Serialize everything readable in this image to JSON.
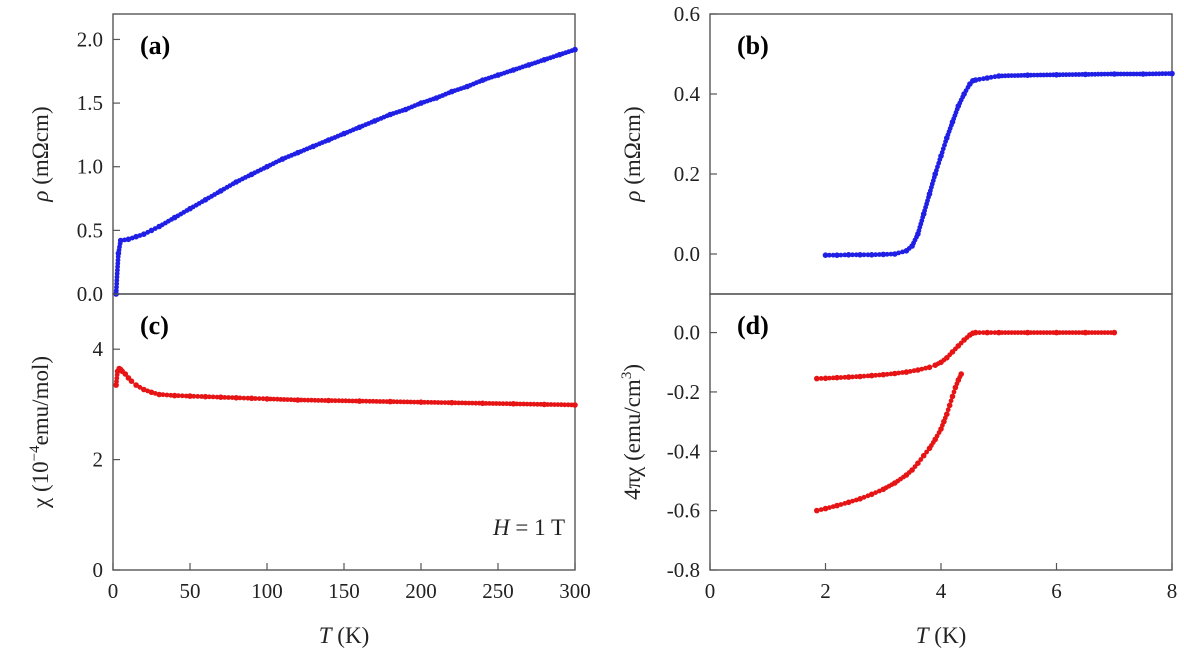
{
  "chart_data": [
    {
      "id": "a",
      "type": "scatter",
      "panel_label": "(a)",
      "ylabel_symbol": "ρ",
      "ylabel_rest": " (mΩcm)",
      "xlabel": "",
      "xlim": [
        0,
        300
      ],
      "ylim": [
        0,
        2.2
      ],
      "xticks": [],
      "yticks": [
        "0.0",
        "0.5",
        "1.0",
        "1.5",
        "2.0"
      ],
      "ytick_values": [
        0,
        0.5,
        1.0,
        1.5,
        2.0
      ],
      "color": "#1f1fe6",
      "series": [
        {
          "x": [
            2,
            3.5,
            5,
            10,
            15,
            20,
            25,
            30,
            40,
            50,
            60,
            70,
            80,
            90,
            100,
            110,
            120,
            130,
            140,
            150,
            160,
            170,
            180,
            190,
            200,
            210,
            220,
            230,
            240,
            250,
            260,
            270,
            280,
            290,
            300
          ],
          "y": [
            0.0,
            0.32,
            0.42,
            0.43,
            0.45,
            0.47,
            0.5,
            0.53,
            0.6,
            0.67,
            0.74,
            0.81,
            0.88,
            0.94,
            1.0,
            1.06,
            1.11,
            1.16,
            1.21,
            1.26,
            1.31,
            1.36,
            1.41,
            1.45,
            1.5,
            1.54,
            1.59,
            1.63,
            1.68,
            1.72,
            1.76,
            1.8,
            1.84,
            1.88,
            1.92
          ]
        }
      ]
    },
    {
      "id": "b",
      "type": "scatter",
      "panel_label": "(b)",
      "ylabel_symbol": "ρ",
      "ylabel_rest": " (mΩcm)",
      "xlabel": "",
      "xlim": [
        0,
        8
      ],
      "ylim": [
        -0.1,
        0.6
      ],
      "xticks": [],
      "yticks": [
        "0.0",
        "0.2",
        "0.4",
        "0.6"
      ],
      "ytick_values": [
        0,
        0.2,
        0.4,
        0.6
      ],
      "color": "#1f1fe6",
      "series": [
        {
          "x": [
            2.0,
            2.2,
            2.4,
            2.6,
            2.8,
            3.0,
            3.2,
            3.4,
            3.5,
            3.6,
            3.7,
            3.8,
            3.9,
            4.0,
            4.1,
            4.2,
            4.3,
            4.4,
            4.5,
            4.55,
            4.6,
            4.8,
            5.0,
            5.5,
            6.0,
            6.5,
            7.0,
            7.5,
            8.0
          ],
          "y": [
            -0.003,
            -0.003,
            -0.002,
            -0.002,
            -0.002,
            -0.001,
            0.0,
            0.008,
            0.02,
            0.05,
            0.1,
            0.15,
            0.2,
            0.245,
            0.29,
            0.33,
            0.37,
            0.4,
            0.425,
            0.433,
            0.435,
            0.44,
            0.445,
            0.447,
            0.448,
            0.449,
            0.45,
            0.45,
            0.451
          ]
        }
      ]
    },
    {
      "id": "c",
      "type": "scatter",
      "panel_label": "(c)",
      "ylabel_pre": "χ (10",
      "ylabel_sup": "−4",
      "ylabel_post": "emu/mol)",
      "xlabel_symbol": "T",
      "xlabel_rest": " (K)",
      "xlim": [
        0,
        300
      ],
      "ylim": [
        0,
        5
      ],
      "xticks": [
        "0",
        "50",
        "100",
        "150",
        "200",
        "250",
        "300"
      ],
      "xtick_values": [
        0,
        50,
        100,
        150,
        200,
        250,
        300
      ],
      "yticks": [
        "0",
        "2",
        "4"
      ],
      "ytick_values": [
        0,
        2,
        4
      ],
      "annotation_symbol": "H",
      "annotation_rest": " = 1 T",
      "color": "#e61414",
      "series": [
        {
          "x": [
            2,
            3,
            4,
            5,
            6,
            8,
            10,
            12,
            15,
            20,
            25,
            30,
            40,
            50,
            60,
            70,
            80,
            90,
            100,
            120,
            140,
            160,
            180,
            200,
            220,
            240,
            260,
            280,
            300
          ],
          "y": [
            3.35,
            3.6,
            3.65,
            3.63,
            3.6,
            3.55,
            3.48,
            3.42,
            3.35,
            3.27,
            3.22,
            3.18,
            3.16,
            3.15,
            3.14,
            3.13,
            3.12,
            3.11,
            3.1,
            3.08,
            3.07,
            3.06,
            3.05,
            3.04,
            3.03,
            3.02,
            3.01,
            3.0,
            2.99
          ]
        }
      ]
    },
    {
      "id": "d",
      "type": "scatter",
      "panel_label": "(d)",
      "ylabel_pre": "4πχ (emu/cm",
      "ylabel_sup": "3",
      "ylabel_post": ")",
      "xlabel_symbol": "T",
      "xlabel_rest": " (K)",
      "xlim": [
        0,
        8
      ],
      "ylim": [
        -0.8,
        0.13
      ],
      "xticks": [
        "0",
        "2",
        "4",
        "6",
        "8"
      ],
      "xtick_values": [
        0,
        2,
        4,
        6,
        8
      ],
      "yticks": [
        "0.0",
        "-0.2",
        "-0.4",
        "-0.6",
        "-0.8"
      ],
      "ytick_values": [
        0,
        -0.2,
        -0.4,
        -0.6,
        -0.8
      ],
      "color": "#e61414",
      "series": [
        {
          "name": "",
          "x": [
            1.85,
            2.0,
            2.2,
            2.4,
            2.6,
            2.8,
            3.0,
            3.2,
            3.4,
            3.6,
            3.8,
            3.9,
            4.0,
            4.1,
            4.2,
            4.3,
            4.4,
            4.5,
            4.55,
            4.6,
            4.8,
            5.0,
            5.5,
            6.0,
            6.5,
            7.0
          ],
          "y": [
            -0.155,
            -0.154,
            -0.152,
            -0.15,
            -0.148,
            -0.145,
            -0.142,
            -0.138,
            -0.133,
            -0.126,
            -0.117,
            -0.11,
            -0.1,
            -0.085,
            -0.065,
            -0.045,
            -0.025,
            -0.008,
            -0.002,
            0.0,
            0.0,
            0.0,
            0.0,
            0.0,
            0.0,
            0.0
          ]
        },
        {
          "name": "",
          "x": [
            1.85,
            2.0,
            2.2,
            2.4,
            2.6,
            2.8,
            3.0,
            3.2,
            3.4,
            3.5,
            3.6,
            3.7,
            3.8,
            3.9,
            4.0,
            4.05,
            4.1,
            4.15,
            4.2,
            4.25,
            4.3,
            4.35
          ],
          "y": [
            -0.6,
            -0.593,
            -0.583,
            -0.572,
            -0.56,
            -0.545,
            -0.528,
            -0.507,
            -0.48,
            -0.463,
            -0.44,
            -0.415,
            -0.39,
            -0.36,
            -0.325,
            -0.3,
            -0.275,
            -0.245,
            -0.215,
            -0.185,
            -0.16,
            -0.14
          ]
        }
      ]
    }
  ]
}
